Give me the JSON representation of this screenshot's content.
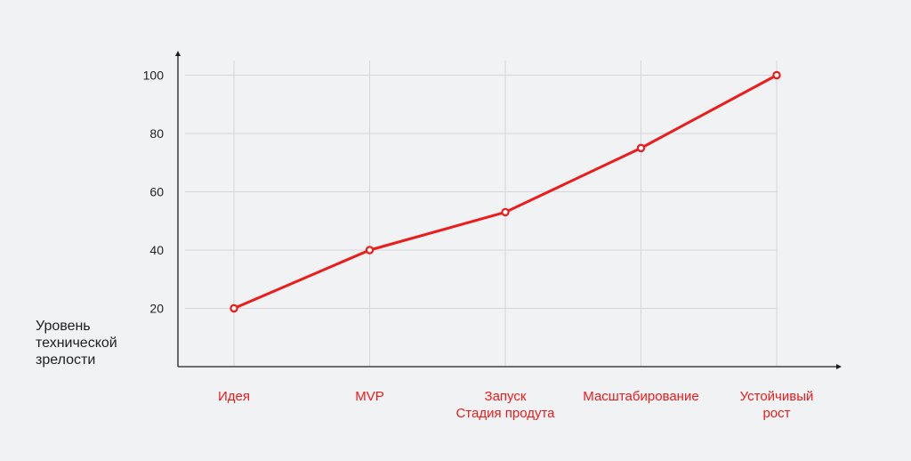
{
  "chart_data": {
    "type": "line",
    "title": "",
    "xlabel": "",
    "ylabel": "Уровень\nтехнической\nзрелости",
    "categories": [
      "Идея",
      "MVP",
      "Запуск\nСтадия продута",
      "Масштабирование",
      "Устойчивый\nрост"
    ],
    "series": [
      {
        "values": [
          20,
          40,
          53,
          75,
          100
        ]
      }
    ],
    "y_ticks": [
      "20",
      "40",
      "60",
      "80",
      "100"
    ],
    "ylim": [
      0,
      105
    ],
    "grid": true,
    "legend": "none",
    "colors": {
      "line": "#ee1b1b",
      "marker_fill": "#ffffff",
      "grid": "#d4d6d9",
      "axis": "#1e1e1e",
      "tick_text": "#1e1e1e",
      "category_text": "#ee1b1b"
    }
  }
}
